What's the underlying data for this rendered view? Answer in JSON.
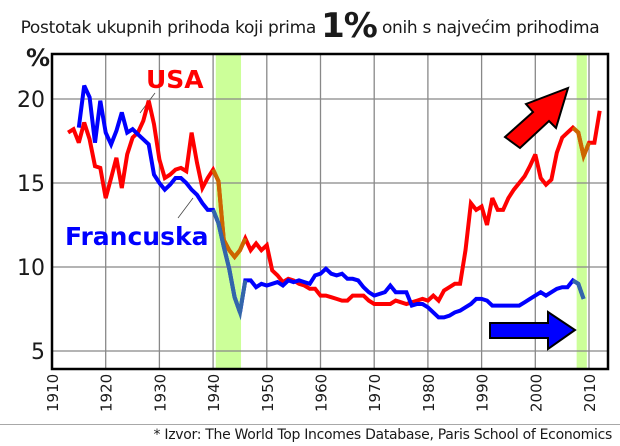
{
  "title": {
    "prefix": "Postotak ukupnih prihoda koji prima",
    "emphasis": "1%",
    "suffix": "onih s najvećim prihodima"
  },
  "source": "* Izvor: The World Top Incomes Database, Paris School of Economics",
  "colors": {
    "usa": "#ff0000",
    "france": "#0000ff",
    "usa_overlap": "#cc6600",
    "france_overlap": "#3366aa",
    "highlight_band": "#ccff99",
    "grid": "#888888",
    "frame": "#000000"
  },
  "chart_data": {
    "type": "line",
    "title": "Postotak ukupnih prihoda koji prima 1% onih s najvećim prihodima",
    "xlabel": "",
    "ylabel": "%",
    "xlim": [
      1910,
      2013
    ],
    "ylim": [
      3.8,
      22.6
    ],
    "grid": true,
    "x_ticks": [
      1910,
      1920,
      1930,
      1940,
      1950,
      1960,
      1970,
      1980,
      1990,
      2000,
      2010
    ],
    "y_ticks": [
      5,
      10,
      15,
      20
    ],
    "highlight_bands": [
      {
        "from": 1940.5,
        "to": 1945.2
      },
      {
        "from": 2007.7,
        "to": 2009.6
      }
    ],
    "annotations": [
      {
        "text": "USA",
        "series": "USA",
        "x": 1931,
        "y": 21.4
      },
      {
        "text": "Francuska",
        "series": "Francuska",
        "x": 1913,
        "y": 12.0
      },
      {
        "text": "up-arrow",
        "series": "USA",
        "direction": "up-right"
      },
      {
        "text": "right-arrow",
        "series": "Francuska",
        "direction": "right"
      }
    ],
    "series": [
      {
        "name": "USA",
        "color": "#ff0000",
        "points": [
          [
            1913,
            18.0
          ],
          [
            1914,
            18.2
          ],
          [
            1915,
            17.4
          ],
          [
            1916,
            18.6
          ],
          [
            1917,
            17.6
          ],
          [
            1918,
            16.0
          ],
          [
            1919,
            15.9
          ],
          [
            1920,
            14.1
          ],
          [
            1921,
            15.3
          ],
          [
            1922,
            16.5
          ],
          [
            1923,
            14.7
          ],
          [
            1924,
            16.7
          ],
          [
            1925,
            17.7
          ],
          [
            1926,
            18.0
          ],
          [
            1927,
            18.7
          ],
          [
            1928,
            19.9
          ],
          [
            1929,
            18.5
          ],
          [
            1930,
            16.4
          ],
          [
            1931,
            15.3
          ],
          [
            1932,
            15.5
          ],
          [
            1933,
            15.8
          ],
          [
            1934,
            15.9
          ],
          [
            1935,
            15.7
          ],
          [
            1936,
            18.0
          ],
          [
            1937,
            16.2
          ],
          [
            1938,
            14.7
          ],
          [
            1939,
            15.3
          ],
          [
            1940,
            15.8
          ],
          [
            1941,
            15.1
          ],
          [
            1942,
            11.6
          ],
          [
            1943,
            11.0
          ],
          [
            1944,
            10.6
          ],
          [
            1945,
            11.0
          ],
          [
            1946,
            11.7
          ],
          [
            1947,
            11.0
          ],
          [
            1948,
            11.4
          ],
          [
            1949,
            11.0
          ],
          [
            1950,
            11.3
          ],
          [
            1951,
            9.8
          ],
          [
            1952,
            9.5
          ],
          [
            1953,
            9.1
          ],
          [
            1954,
            9.3
          ],
          [
            1955,
            9.2
          ],
          [
            1956,
            9.0
          ],
          [
            1957,
            8.9
          ],
          [
            1958,
            8.7
          ],
          [
            1959,
            8.7
          ],
          [
            1960,
            8.3
          ],
          [
            1961,
            8.3
          ],
          [
            1962,
            8.2
          ],
          [
            1963,
            8.1
          ],
          [
            1964,
            8.0
          ],
          [
            1965,
            8.0
          ],
          [
            1966,
            8.3
          ],
          [
            1967,
            8.3
          ],
          [
            1968,
            8.3
          ],
          [
            1969,
            8.0
          ],
          [
            1970,
            7.8
          ],
          [
            1971,
            7.8
          ],
          [
            1972,
            7.8
          ],
          [
            1973,
            7.8
          ],
          [
            1974,
            8.0
          ],
          [
            1975,
            7.9
          ],
          [
            1976,
            7.8
          ],
          [
            1977,
            7.9
          ],
          [
            1978,
            8.0
          ],
          [
            1979,
            8.1
          ],
          [
            1980,
            8.0
          ],
          [
            1981,
            8.3
          ],
          [
            1982,
            8.0
          ],
          [
            1983,
            8.6
          ],
          [
            1984,
            8.8
          ],
          [
            1985,
            9.0
          ],
          [
            1986,
            9.0
          ],
          [
            1987,
            11.0
          ],
          [
            1988,
            13.8
          ],
          [
            1989,
            13.4
          ],
          [
            1990,
            13.6
          ],
          [
            1991,
            12.5
          ],
          [
            1992,
            14.1
          ],
          [
            1993,
            13.4
          ],
          [
            1994,
            13.4
          ],
          [
            1995,
            14.1
          ],
          [
            1996,
            14.6
          ],
          [
            1997,
            15.0
          ],
          [
            1998,
            15.4
          ],
          [
            1999,
            16.0
          ],
          [
            2000,
            16.7
          ],
          [
            2001,
            15.3
          ],
          [
            2002,
            14.9
          ],
          [
            2003,
            15.2
          ],
          [
            2004,
            16.8
          ],
          [
            2005,
            17.7
          ],
          [
            2006,
            18.0
          ],
          [
            2007,
            18.3
          ],
          [
            2008,
            18.0
          ],
          [
            2009,
            16.6
          ],
          [
            2010,
            17.4
          ],
          [
            2011,
            17.4
          ],
          [
            2012,
            19.3
          ]
        ]
      },
      {
        "name": "Francuska",
        "color": "#0000ff",
        "points": [
          [
            1915,
            18.3
          ],
          [
            1916,
            20.8
          ],
          [
            1917,
            20.1
          ],
          [
            1918,
            17.4
          ],
          [
            1919,
            19.9
          ],
          [
            1920,
            18.0
          ],
          [
            1921,
            17.3
          ],
          [
            1922,
            18.1
          ],
          [
            1923,
            19.2
          ],
          [
            1924,
            18.0
          ],
          [
            1925,
            18.2
          ],
          [
            1926,
            17.9
          ],
          [
            1927,
            17.6
          ],
          [
            1928,
            17.3
          ],
          [
            1929,
            15.5
          ],
          [
            1930,
            15.0
          ],
          [
            1931,
            14.6
          ],
          [
            1932,
            14.9
          ],
          [
            1933,
            15.3
          ],
          [
            1934,
            15.3
          ],
          [
            1935,
            15.0
          ],
          [
            1936,
            14.6
          ],
          [
            1937,
            14.3
          ],
          [
            1938,
            13.8
          ],
          [
            1939,
            13.4
          ],
          [
            1940,
            13.4
          ],
          [
            1941,
            12.6
          ],
          [
            1942,
            11.2
          ],
          [
            1943,
            9.9
          ],
          [
            1944,
            8.2
          ],
          [
            1945,
            7.3
          ],
          [
            1946,
            9.2
          ],
          [
            1947,
            9.2
          ],
          [
            1948,
            8.8
          ],
          [
            1949,
            9.0
          ],
          [
            1950,
            8.9
          ],
          [
            1951,
            9.0
          ],
          [
            1952,
            9.1
          ],
          [
            1953,
            8.9
          ],
          [
            1954,
            9.2
          ],
          [
            1955,
            9.1
          ],
          [
            1956,
            9.2
          ],
          [
            1957,
            9.1
          ],
          [
            1958,
            9.0
          ],
          [
            1959,
            9.5
          ],
          [
            1960,
            9.6
          ],
          [
            1961,
            9.9
          ],
          [
            1962,
            9.6
          ],
          [
            1963,
            9.5
          ],
          [
            1964,
            9.6
          ],
          [
            1965,
            9.3
          ],
          [
            1966,
            9.3
          ],
          [
            1967,
            9.2
          ],
          [
            1968,
            8.8
          ],
          [
            1969,
            8.5
          ],
          [
            1970,
            8.3
          ],
          [
            1971,
            8.4
          ],
          [
            1972,
            8.5
          ],
          [
            1973,
            8.9
          ],
          [
            1974,
            8.5
          ],
          [
            1975,
            8.5
          ],
          [
            1976,
            8.5
          ],
          [
            1977,
            7.7
          ],
          [
            1978,
            7.8
          ],
          [
            1979,
            7.8
          ],
          [
            1980,
            7.6
          ],
          [
            1981,
            7.3
          ],
          [
            1982,
            7.0
          ],
          [
            1983,
            7.0
          ],
          [
            1984,
            7.1
          ],
          [
            1985,
            7.3
          ],
          [
            1986,
            7.4
          ],
          [
            1987,
            7.6
          ],
          [
            1988,
            7.8
          ],
          [
            1989,
            8.1
          ],
          [
            1990,
            8.1
          ],
          [
            1991,
            8.0
          ],
          [
            1992,
            7.7
          ],
          [
            1993,
            7.7
          ],
          [
            1994,
            7.7
          ],
          [
            1995,
            7.7
          ],
          [
            1996,
            7.7
          ],
          [
            1997,
            7.7
          ],
          [
            1998,
            7.9
          ],
          [
            1999,
            8.1
          ],
          [
            2000,
            8.3
          ],
          [
            2001,
            8.5
          ],
          [
            2002,
            8.3
          ],
          [
            2003,
            8.5
          ],
          [
            2004,
            8.7
          ],
          [
            2005,
            8.8
          ],
          [
            2006,
            8.8
          ],
          [
            2007,
            9.2
          ],
          [
            2008,
            9.0
          ],
          [
            2009,
            8.1
          ]
        ]
      }
    ]
  }
}
